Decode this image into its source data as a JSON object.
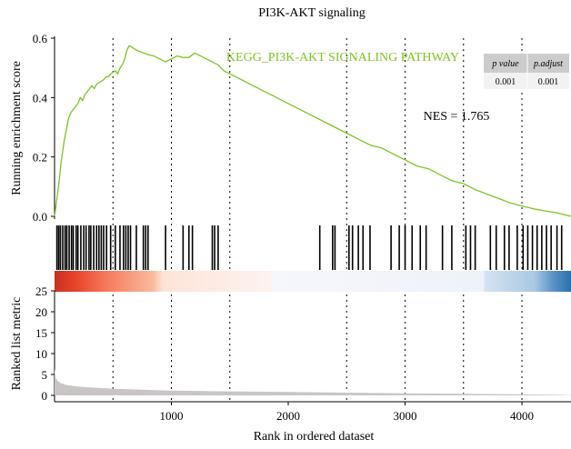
{
  "chart_data": {
    "type": "line",
    "title": "PI3K-AKT signaling",
    "pathway_label": "KEGG_PI3K-AKT SIGNALING PATHWAY",
    "nes_label": "NES = 1.765",
    "stats_table": {
      "headers": [
        "p value",
        "p.adjust"
      ],
      "values": [
        "0.001",
        "0.001"
      ]
    },
    "colors": {
      "curve": "#7cc41f",
      "hits": "#000000",
      "metric_fill": "#c9c5c5",
      "rank_red": "#e8442c",
      "rank_blue": "#2c6fae"
    },
    "x_axis": {
      "label": "Rank in ordered dataset",
      "range": [
        0,
        4420
      ],
      "ticks": [
        1000,
        2000,
        3000,
        4000
      ],
      "tick_labels": [
        "1000",
        "2000",
        "3000",
        "4000"
      ],
      "dotted_guides": [
        500,
        1000,
        1500,
        2500,
        3000,
        3500,
        4000
      ]
    },
    "enrichment_panel": {
      "ylabel": "Running enrichment score",
      "ylim": [
        0,
        0.6
      ],
      "ticks": [
        0.0,
        0.2,
        0.4,
        0.6
      ],
      "tick_labels": [
        "0.0",
        "0.2",
        "0.4",
        "0.6"
      ],
      "points": [
        [
          0,
          0.0
        ],
        [
          20,
          0.06
        ],
        [
          40,
          0.12
        ],
        [
          55,
          0.18
        ],
        [
          70,
          0.22
        ],
        [
          85,
          0.26
        ],
        [
          100,
          0.29
        ],
        [
          120,
          0.33
        ],
        [
          140,
          0.35
        ],
        [
          160,
          0.36
        ],
        [
          180,
          0.37
        ],
        [
          200,
          0.38
        ],
        [
          220,
          0.4
        ],
        [
          240,
          0.39
        ],
        [
          260,
          0.41
        ],
        [
          280,
          0.42
        ],
        [
          300,
          0.43
        ],
        [
          320,
          0.44
        ],
        [
          340,
          0.43
        ],
        [
          360,
          0.445
        ],
        [
          380,
          0.45
        ],
        [
          400,
          0.455
        ],
        [
          420,
          0.46
        ],
        [
          440,
          0.47
        ],
        [
          460,
          0.47
        ],
        [
          480,
          0.48
        ],
        [
          500,
          0.485
        ],
        [
          520,
          0.49
        ],
        [
          540,
          0.48
        ],
        [
          560,
          0.5
        ],
        [
          580,
          0.51
        ],
        [
          600,
          0.53
        ],
        [
          620,
          0.56
        ],
        [
          640,
          0.575
        ],
        [
          700,
          0.56
        ],
        [
          760,
          0.55
        ],
        [
          800,
          0.545
        ],
        [
          850,
          0.54
        ],
        [
          900,
          0.53
        ],
        [
          950,
          0.52
        ],
        [
          1000,
          0.53
        ],
        [
          1050,
          0.54
        ],
        [
          1100,
          0.535
        ],
        [
          1150,
          0.535
        ],
        [
          1200,
          0.55
        ],
        [
          1250,
          0.54
        ],
        [
          1300,
          0.53
        ],
        [
          1350,
          0.52
        ],
        [
          1400,
          0.51
        ],
        [
          1450,
          0.49
        ],
        [
          1500,
          0.48
        ],
        [
          1600,
          0.46
        ],
        [
          1700,
          0.44
        ],
        [
          1800,
          0.42
        ],
        [
          1900,
          0.4
        ],
        [
          2000,
          0.38
        ],
        [
          2100,
          0.36
        ],
        [
          2200,
          0.34
        ],
        [
          2300,
          0.32
        ],
        [
          2400,
          0.3
        ],
        [
          2500,
          0.28
        ],
        [
          2600,
          0.26
        ],
        [
          2700,
          0.24
        ],
        [
          2800,
          0.23
        ],
        [
          2900,
          0.21
        ],
        [
          3000,
          0.19
        ],
        [
          3100,
          0.17
        ],
        [
          3200,
          0.16
        ],
        [
          3300,
          0.14
        ],
        [
          3400,
          0.12
        ],
        [
          3500,
          0.11
        ],
        [
          3600,
          0.09
        ],
        [
          3700,
          0.075
        ],
        [
          3800,
          0.06
        ],
        [
          3900,
          0.045
        ],
        [
          4000,
          0.035
        ],
        [
          4100,
          0.025
        ],
        [
          4200,
          0.018
        ],
        [
          4300,
          0.012
        ],
        [
          4380,
          0.004
        ],
        [
          4420,
          0.0
        ]
      ]
    },
    "hits": [
      20,
      35,
      50,
      70,
      90,
      105,
      125,
      145,
      160,
      185,
      200,
      225,
      250,
      270,
      295,
      310,
      335,
      360,
      380,
      400,
      420,
      445,
      480,
      520,
      560,
      590,
      610,
      630,
      650,
      700,
      760,
      780,
      800,
      950,
      1100,
      1150,
      1180,
      1350,
      1370,
      1400,
      2270,
      2380,
      2400,
      2520,
      2550,
      2600,
      2640,
      2700,
      2880,
      2950,
      3000,
      3060,
      3130,
      3180,
      3320,
      3400,
      3520,
      3560,
      3600,
      3730,
      3780,
      3850,
      3890,
      3960,
      4010,
      4050,
      4090,
      4130,
      4170,
      4210,
      4250,
      4300,
      4340
    ],
    "metric_panel": {
      "ylabel": "Ranked list metric",
      "ylim": [
        0,
        25
      ],
      "ticks": [
        0,
        5,
        10,
        15,
        20,
        25
      ],
      "tick_labels": [
        "0",
        "5",
        "10",
        "15",
        "20",
        "25"
      ],
      "points": [
        [
          0,
          6.5
        ],
        [
          10,
          4.2
        ],
        [
          25,
          3.5
        ],
        [
          50,
          3.0
        ],
        [
          100,
          2.5
        ],
        [
          200,
          2.1
        ],
        [
          300,
          1.9
        ],
        [
          500,
          1.6
        ],
        [
          800,
          1.3
        ],
        [
          1000,
          1.15
        ],
        [
          1500,
          0.95
        ],
        [
          2000,
          0.8
        ],
        [
          2500,
          0.65
        ],
        [
          3000,
          0.5
        ],
        [
          3500,
          0.38
        ],
        [
          4000,
          0.25
        ],
        [
          4300,
          0.12
        ],
        [
          4420,
          0.05
        ]
      ]
    }
  }
}
